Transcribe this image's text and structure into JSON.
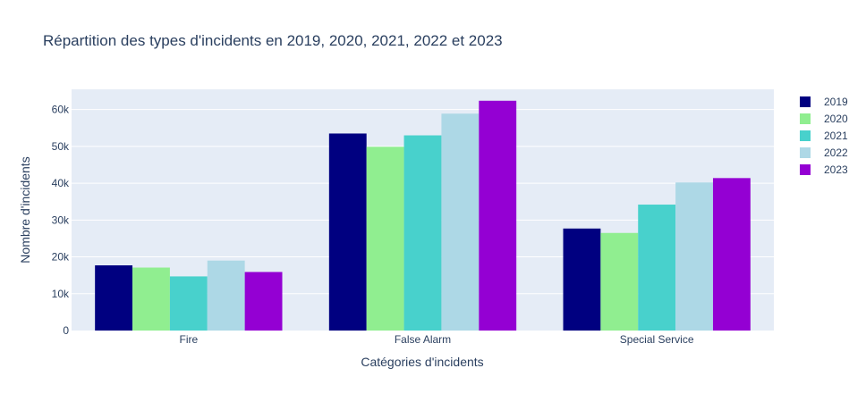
{
  "chart_data": {
    "type": "bar",
    "title": "Répartition des types d'incidents en 2019, 2020, 2021, 2022 et 2023",
    "xlabel": "Catégories d'incidents",
    "ylabel": "Nombre d'incidents",
    "categories": [
      "Fire",
      "False Alarm",
      "Special Service"
    ],
    "ylim": [
      0,
      65500
    ],
    "yticks": [
      0,
      10000,
      20000,
      30000,
      40000,
      50000,
      60000
    ],
    "ytick_labels": [
      "0",
      "10k",
      "20k",
      "30k",
      "40k",
      "50k",
      "60k"
    ],
    "grid": true,
    "legend_position": "top-right",
    "series": [
      {
        "name": "2019",
        "color": "#000080",
        "values": [
          17700,
          53500,
          27700
        ]
      },
      {
        "name": "2020",
        "color": "#90ee90",
        "values": [
          17100,
          49900,
          26500
        ]
      },
      {
        "name": "2021",
        "color": "#48d1cc",
        "values": [
          14700,
          53000,
          34200
        ]
      },
      {
        "name": "2022",
        "color": "#add8e6",
        "values": [
          19000,
          58900,
          40200
        ]
      },
      {
        "name": "2023",
        "color": "#9400d3",
        "values": [
          15900,
          62400,
          41400
        ]
      }
    ],
    "plot_background": "#e5ecf6",
    "grid_color": "#ffffff",
    "text_color": "#2a3f5f"
  }
}
